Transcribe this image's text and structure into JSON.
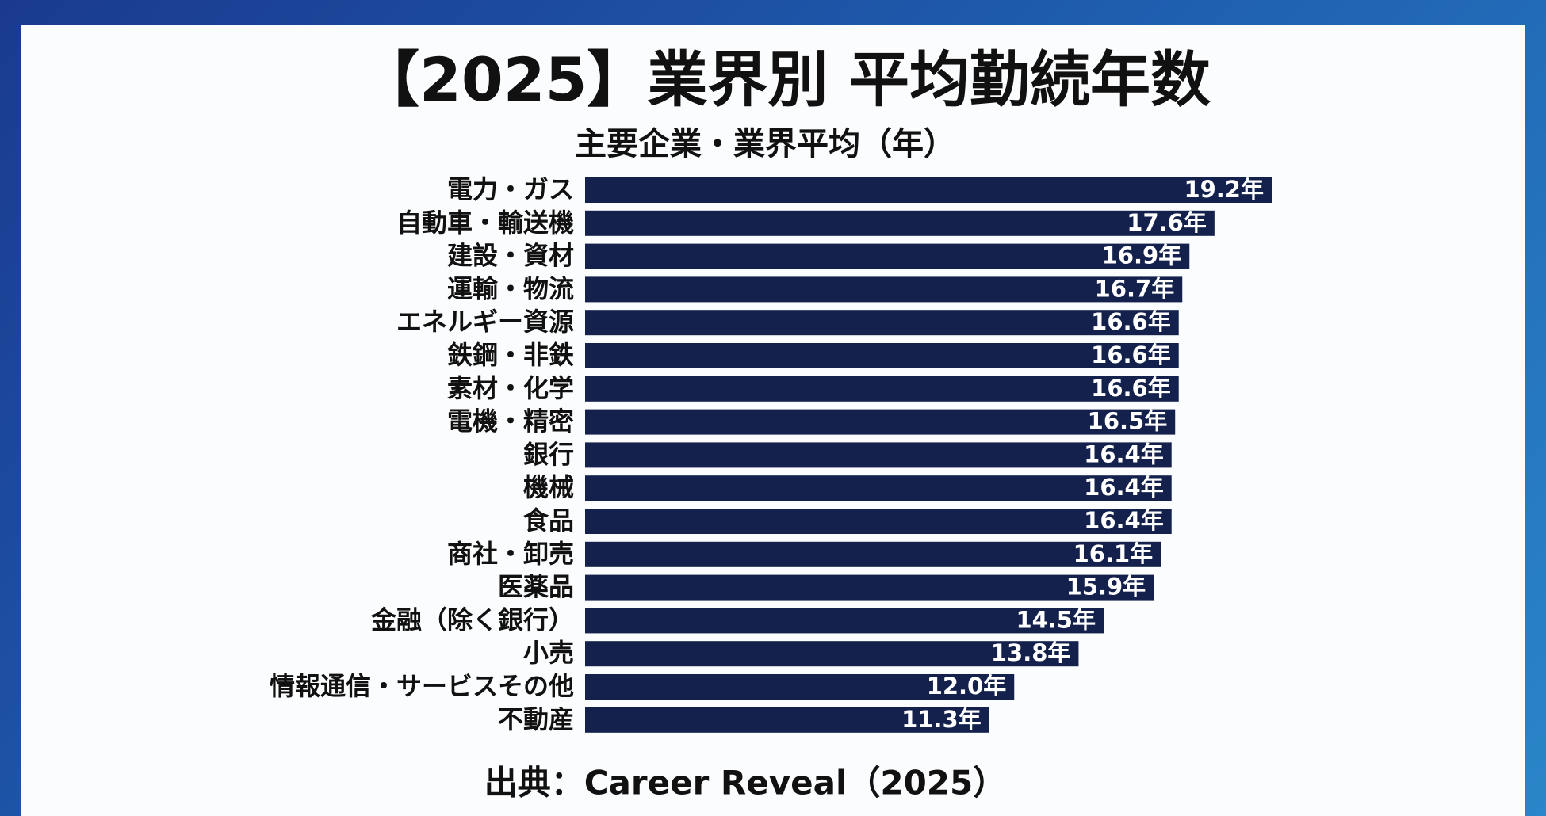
{
  "chart_data": {
    "type": "bar",
    "orientation": "horizontal",
    "title": "【2025】業界別 平均勤続年数",
    "subtitle": "主要企業・業界平均（年）",
    "source": "出典：Career Reveal（2025）",
    "color": "#14214d",
    "categories": [
      "電力・ガス",
      "自動車・輸送機",
      "建設・資材",
      "運輸・物流",
      "エネルギー資源",
      "鉄鋼・非鉄",
      "素材・化学",
      "電機・精密",
      "銀行",
      "機械",
      "食品",
      "商社・卸売",
      "医薬品",
      "金融（除く銀行）",
      "小売",
      "情報通信・サービスその他",
      "不動産"
    ],
    "values": [
      19.2,
      17.6,
      16.9,
      16.7,
      16.6,
      16.6,
      16.6,
      16.5,
      16.4,
      16.4,
      16.4,
      16.1,
      15.9,
      14.5,
      13.8,
      12.0,
      11.3
    ],
    "value_labels": [
      "19.2年",
      "17.6年",
      "16.9年",
      "16.7年",
      "16.6年",
      "16.6年",
      "16.6年",
      "16.5年",
      "16.4年",
      "16.4年",
      "16.4年",
      "16.1年",
      "15.9年",
      "14.5年",
      "13.8年",
      "12.0年",
      "11.3年"
    ]
  }
}
